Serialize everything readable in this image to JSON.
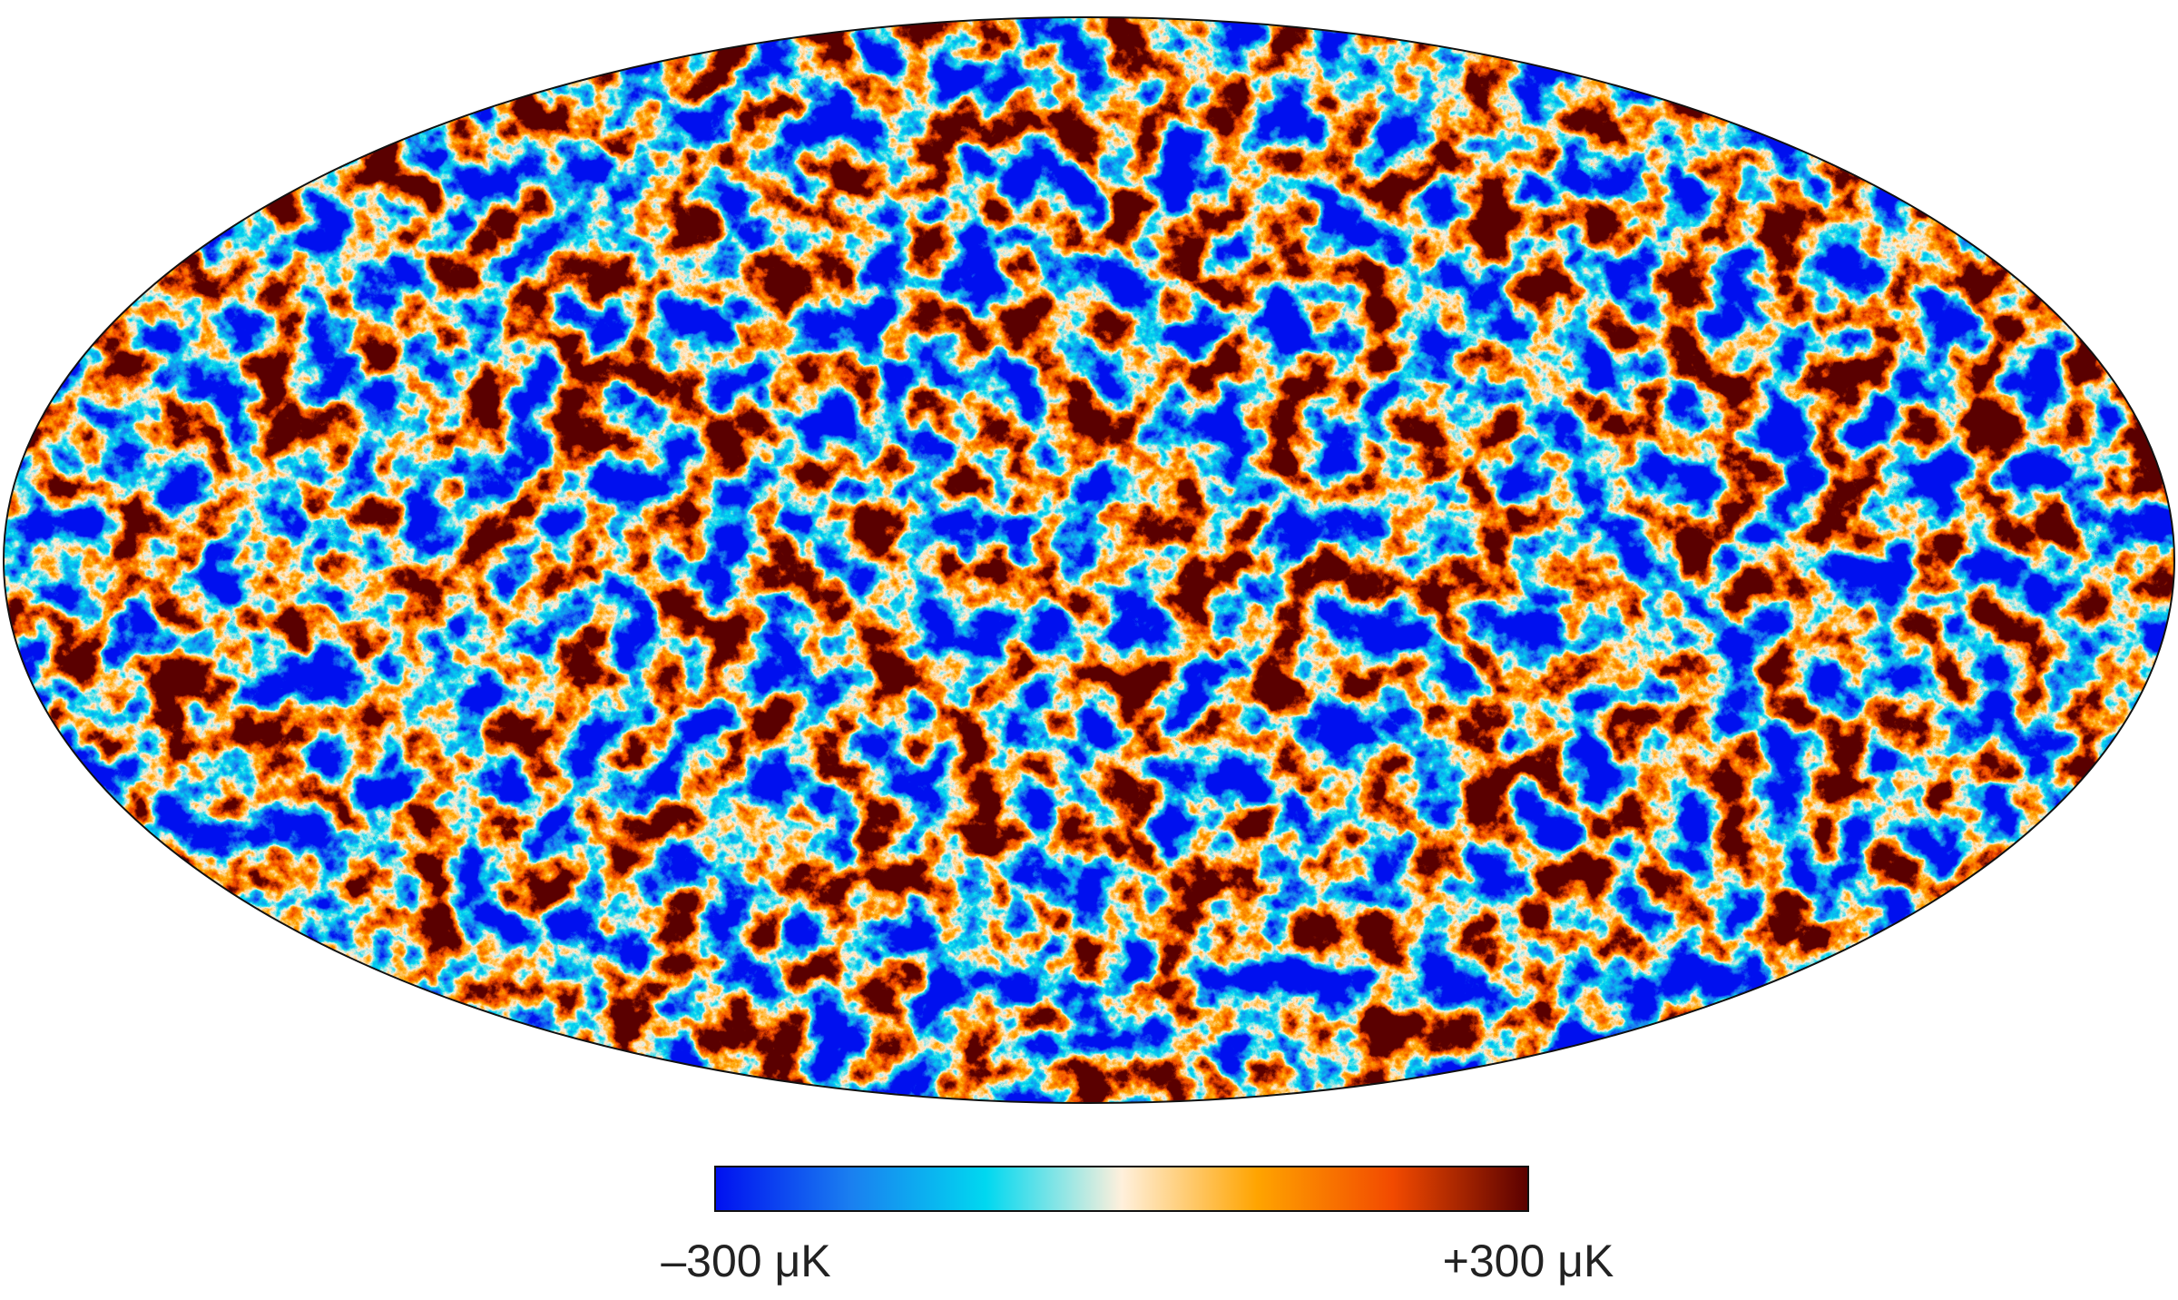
{
  "map": {
    "colorbar": {
      "labels": [
        "–300 μK",
        "+300 μK"
      ],
      "colors": [
        "#0010f0",
        "#1a7ff0",
        "#00d8f0",
        "#fff0dc",
        "#ffa400",
        "#f24a00",
        "#5a0000"
      ]
    }
  }
}
